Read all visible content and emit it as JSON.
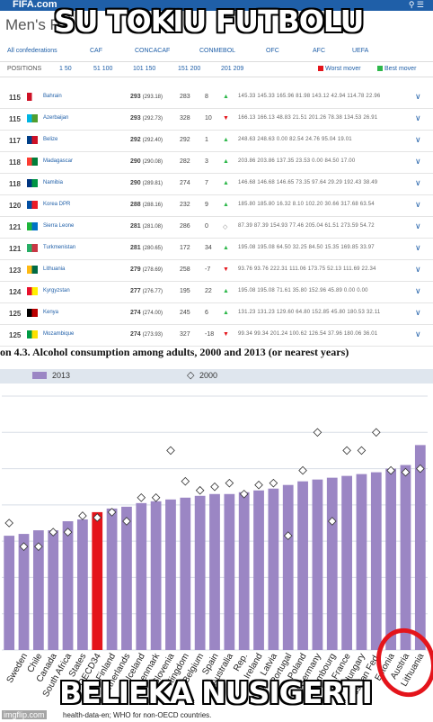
{
  "meme": {
    "top_text": "SU TOKIU FUTBOLU",
    "bottom_text": "BELIEKA NUSIGERTI",
    "watermark": "imgflip.com",
    "circle_color": "#e4141b"
  },
  "fifa": {
    "brand": "FIFA.com",
    "title": "Men's Ra",
    "confederations": [
      "All confederations",
      "CAF",
      "CONCACAF",
      "CONMEBOL",
      "OFC",
      "AFC",
      "UEFA"
    ],
    "positions_label": "POSITIONS",
    "position_ranges": [
      "1 50",
      "51 100",
      "101 150",
      "151 200",
      "201 209"
    ],
    "worst_mover": "Worst mover",
    "best_mover": "Best mover",
    "colors": {
      "worst": "#e4141b",
      "best": "#2eb84b",
      "link": "#1f5fa8",
      "up": "#2eb84b",
      "down": "#e4141b"
    },
    "rows": [
      {
        "rank": "115",
        "name": "Bahrain",
        "points": "293",
        "prev": "(293.18)",
        "prev_rank": "283",
        "change": "8",
        "dir": "up",
        "stats": "145.33  145.33  165.96  81.98  143.12  42.94  114.78  22.96",
        "flag": [
          "#ce1126",
          "#ffffff"
        ]
      },
      {
        "rank": "115",
        "name": "Azerbaijan",
        "points": "293",
        "prev": "(292.73)",
        "prev_rank": "328",
        "change": "10",
        "dir": "down",
        "stats": "166.13  166.13  48.83  21.51  201.26  78.38  134.53  26.91",
        "flag": [
          "#00b5e2",
          "#509e2f"
        ]
      },
      {
        "rank": "117",
        "name": "Belize",
        "points": "292",
        "prev": "(292.40)",
        "prev_rank": "292",
        "change": "1",
        "dir": "up",
        "stats": "248.63  248.63  0.00  82.54  24.76  95.04  19.01",
        "flag": [
          "#003f87",
          "#ce1126"
        ]
      },
      {
        "rank": "118",
        "name": "Madagascar",
        "points": "290",
        "prev": "(290.08)",
        "prev_rank": "282",
        "change": "3",
        "dir": "up",
        "stats": "203.86  203.86  137.35  23.53  0.00  84.50  17.00",
        "flag": [
          "#fc3d32",
          "#007e3a"
        ]
      },
      {
        "rank": "118",
        "name": "Namibia",
        "points": "290",
        "prev": "(289.81)",
        "prev_rank": "274",
        "change": "7",
        "dir": "up",
        "stats": "146.68  146.68  146.65  73.35  97.64  29.29  192.43  38.49",
        "flag": [
          "#003580",
          "#009543"
        ]
      },
      {
        "rank": "120",
        "name": "Korea DPR",
        "points": "288",
        "prev": "(288.16)",
        "prev_rank": "232",
        "change": "9",
        "dir": "up",
        "stats": "185.80  185.80  16.32  8.10  102.20  30.66  317.68  63.54",
        "flag": [
          "#024fa2",
          "#ed1c27"
        ]
      },
      {
        "rank": "121",
        "name": "Sierra Leone",
        "points": "281",
        "prev": "(281.08)",
        "prev_rank": "286",
        "change": "0",
        "dir": "same",
        "stats": "87.39  87.39  154.93  77.46  205.04  61.51  273.59  54.72",
        "flag": [
          "#1eb53a",
          "#0072c6"
        ]
      },
      {
        "rank": "121",
        "name": "Turkmenistan",
        "points": "281",
        "prev": "(280.65)",
        "prev_rank": "172",
        "change": "34",
        "dir": "up",
        "stats": "195.08  195.08  64.50  32.25  84.50  15.35  169.85  33.97",
        "flag": [
          "#28ae66",
          "#ca3745"
        ]
      },
      {
        "rank": "123",
        "name": "Lithuania",
        "points": "279",
        "prev": "(278.69)",
        "prev_rank": "258",
        "change": "-7",
        "dir": "down",
        "stats": "93.76  93.76  222.31  111.06  173.75  52.13  111.69  22.34",
        "flag": [
          "#fdb913",
          "#006a44"
        ]
      },
      {
        "rank": "124",
        "name": "Kyrgyzstan",
        "points": "277",
        "prev": "(276.77)",
        "prev_rank": "195",
        "change": "22",
        "dir": "up",
        "stats": "195.08  195.08  71.61  35.80  152.96  45.89  0.00  0.00",
        "flag": [
          "#e8112d",
          "#ffef00"
        ]
      },
      {
        "rank": "125",
        "name": "Kenya",
        "points": "274",
        "prev": "(274.00)",
        "prev_rank": "245",
        "change": "6",
        "dir": "up",
        "stats": "131.23  131.23  129.60  64.80  152.85  45.80  180.53  32.11",
        "flag": [
          "#000000",
          "#bb0000"
        ]
      },
      {
        "rank": "125",
        "name": "Mozambique",
        "points": "274",
        "prev": "(273.93)",
        "prev_rank": "327",
        "change": "-18",
        "dir": "down",
        "stats": "99.34  99.34  201.24  100.62  126.54  37.96  180.06  36.01",
        "flag": [
          "#009a44",
          "#fce100"
        ]
      }
    ]
  },
  "figure": {
    "title": "on  4.3.  Alcohol consumption among adults, 2000 and 2013 (or nearest years)",
    "legend": {
      "series_2013": "2013",
      "series_2000": "2000"
    },
    "footnote": "health-data-en; WHO for non-OECD countries."
  },
  "chart_data": {
    "type": "bar",
    "categories": [
      "",
      "Sweden",
      "Chile",
      "Canada",
      "South Africa",
      "States",
      "OECD34",
      "Finland",
      "Netherlands",
      "Iceland",
      "Denmark",
      "Slovenia",
      "Kingdom",
      "Belgium",
      "Spain",
      "Australia",
      "Rep.",
      "Ireland",
      "Latvia",
      "Portugal",
      "Poland",
      "Germany",
      "Luxembourg",
      "France",
      "Hungary",
      "Russian Fed.",
      "Estonia",
      "Austria",
      "Lithuania"
    ],
    "series": [
      {
        "name": "2013",
        "values": [
          6.3,
          6.4,
          6.6,
          6.6,
          7.1,
          7.2,
          7.6,
          7.8,
          7.9,
          8.1,
          8.2,
          8.3,
          8.4,
          8.5,
          8.6,
          8.6,
          8.7,
          8.8,
          8.9,
          9.1,
          9.3,
          9.4,
          9.5,
          9.6,
          9.7,
          9.8,
          10.0,
          10.2,
          11.3
        ]
      },
      {
        "name": "2000",
        "values": [
          7.0,
          5.7,
          5.7,
          6.5,
          6.5,
          7.4,
          7.3,
          7.6,
          7.1,
          8.4,
          8.4,
          11.0,
          9.3,
          8.8,
          9.0,
          9.2,
          8.6,
          9.1,
          9.2,
          6.3,
          9.9,
          12.0,
          7.1,
          11.0,
          11.0,
          12.0,
          9.9,
          9.8,
          10.0
        ]
      }
    ],
    "highlight": "OECD34",
    "highlight_color": "#e4141b",
    "bar_color": "#9b86c4",
    "ylim": [
      0,
      14
    ],
    "grid": true,
    "legend_position": "top"
  }
}
